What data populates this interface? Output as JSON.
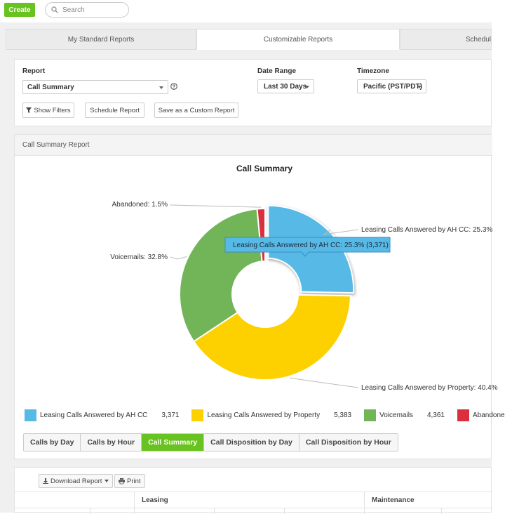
{
  "topbar": {
    "create_label": "Create",
    "search_placeholder": "Search"
  },
  "tabs": [
    {
      "label": "My Standard Reports",
      "active": false
    },
    {
      "label": "Customizable Reports",
      "active": true
    },
    {
      "label": "Schedul",
      "active": false
    }
  ],
  "filters": {
    "report_label": "Report",
    "report_value": "Call Summary",
    "date_range_label": "Date Range",
    "date_range_value": "Last 30 Days",
    "timezone_label": "Timezone",
    "timezone_value": "Pacific (PST/PDT)",
    "show_filters_label": "Show Filters",
    "schedule_report_label": "Schedule Report",
    "save_custom_label": "Save as a Custom Report"
  },
  "report_panel": {
    "header": "Call Summary Report"
  },
  "chart_data": {
    "type": "pie",
    "title": "Call Summary",
    "donut": true,
    "series": [
      {
        "name": "Leasing Calls Answered by AH CC",
        "value": 3371,
        "percent": 25.3,
        "color": "#56b9e6",
        "label": "Leasing Calls Answered by AH CC: 25.3%"
      },
      {
        "name": "Leasing Calls Answered by Property",
        "value": 5383,
        "percent": 40.4,
        "color": "#fdd000",
        "label": "Leasing Calls Answered by Property: 40.4%"
      },
      {
        "name": "Voicemails",
        "value": 4361,
        "percent": 32.8,
        "color": "#72b558",
        "label": "Voicemails: 32.8%"
      },
      {
        "name": "Abandoned",
        "value": 200,
        "percent": 1.5,
        "color": "#d8303f",
        "label": "Abandoned: 1.5%"
      }
    ],
    "tooltip": "Leasing Calls Answered by AH CC: 25.3% (3,371)",
    "legend": [
      {
        "name": "Leasing Calls Answered by AH CC",
        "value": "3,371",
        "color": "#56b9e6"
      },
      {
        "name": "Leasing Calls Answered by Property",
        "value": "5,383",
        "color": "#fdd000"
      },
      {
        "name": "Voicemails",
        "value": "4,361",
        "color": "#72b558"
      },
      {
        "name": "Abandone",
        "value": "",
        "color": "#d8303f"
      }
    ],
    "legend_position": "bottom"
  },
  "view_tabs": [
    {
      "label": "Calls by Day",
      "active": false
    },
    {
      "label": "Calls by Hour",
      "active": false
    },
    {
      "label": "Call Summary",
      "active": true
    },
    {
      "label": "Call Disposition by Day",
      "active": false
    },
    {
      "label": "Call Disposition by Hour",
      "active": false
    }
  ],
  "table": {
    "download_label": "Download Report",
    "print_label": "Print",
    "groups": [
      "Leasing",
      "Maintenance"
    ]
  },
  "colors": {
    "accent_green": "#68c21f"
  }
}
